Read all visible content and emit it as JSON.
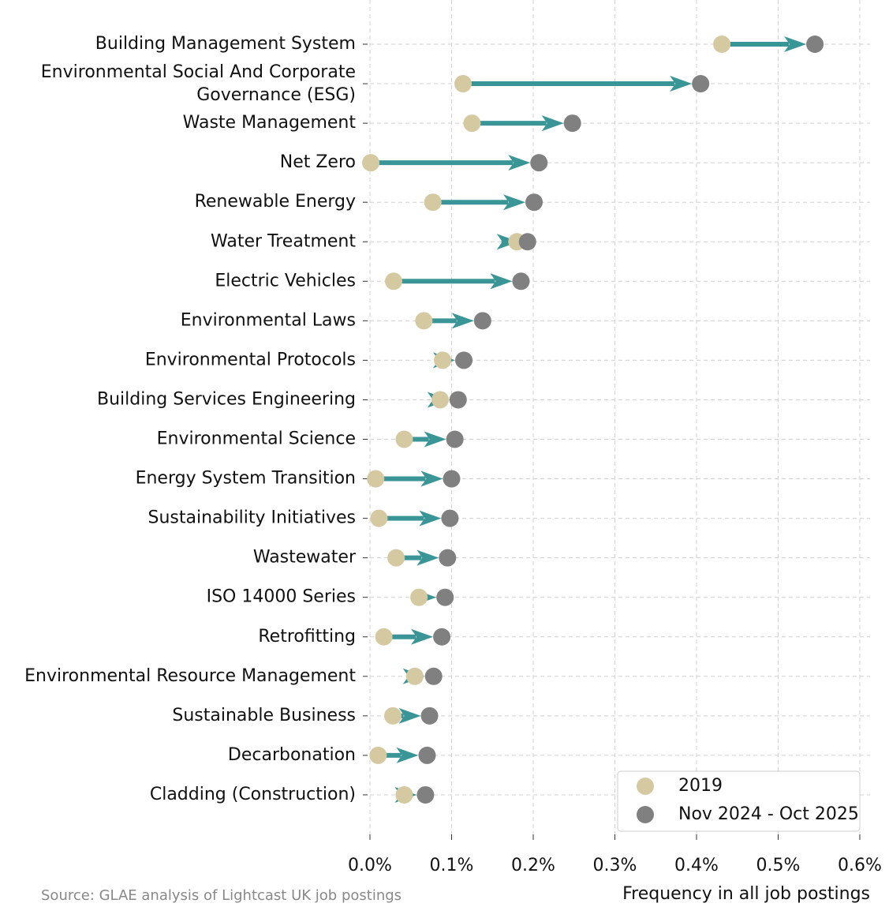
{
  "chart_data": {
    "type": "arrow",
    "categories": [
      "Building Management System",
      "Environmental Social And Corporate\nGovernance (ESG)",
      "Waste Management",
      "Net Zero",
      "Renewable Energy",
      "Water Treatment",
      "Electric Vehicles",
      "Environmental Laws",
      "Environmental Protocols",
      "Building Services Engineering",
      "Environmental Science",
      "Energy System Transition",
      "Sustainability Initiatives",
      "Wastewater",
      "ISO 14000 Series",
      "Retrofitting",
      "Environmental Resource Management",
      "Sustainable Business",
      "Decarbonation",
      "Cladding (Construction)"
    ],
    "series": [
      {
        "name": "2019",
        "color": "#d4c9a0",
        "values": [
          0.431,
          0.114,
          0.125,
          0.001,
          0.077,
          0.18,
          0.029,
          0.066,
          0.089,
          0.086,
          0.042,
          0.007,
          0.011,
          0.032,
          0.06,
          0.017,
          0.055,
          0.028,
          0.01,
          0.042
        ]
      },
      {
        "name": "Nov 2024 - Oct 2025",
        "color": "#808080",
        "values": [
          0.545,
          0.405,
          0.248,
          0.207,
          0.201,
          0.193,
          0.185,
          0.138,
          0.115,
          0.108,
          0.104,
          0.1,
          0.098,
          0.095,
          0.092,
          0.088,
          0.078,
          0.073,
          0.07,
          0.068
        ]
      }
    ],
    "arrow_color": "#3a9696",
    "xlabel": "Frequency in all job postings",
    "xlim": [
      0,
      0.6
    ],
    "xticks": [
      {
        "value": 0,
        "label": "0.0%"
      },
      {
        "value": 0.1,
        "label": "0.1%"
      },
      {
        "value": 0.2,
        "label": "0.2%"
      },
      {
        "value": 0.3,
        "label": "0.3%"
      },
      {
        "value": 0.4,
        "label": "0.4%"
      },
      {
        "value": 0.5,
        "label": "0.5%"
      },
      {
        "value": 0.6,
        "label": "0.6%"
      }
    ],
    "grid": true,
    "legend": "lower right",
    "source": "Source: GLAE analysis of Lightcast UK job postings"
  }
}
